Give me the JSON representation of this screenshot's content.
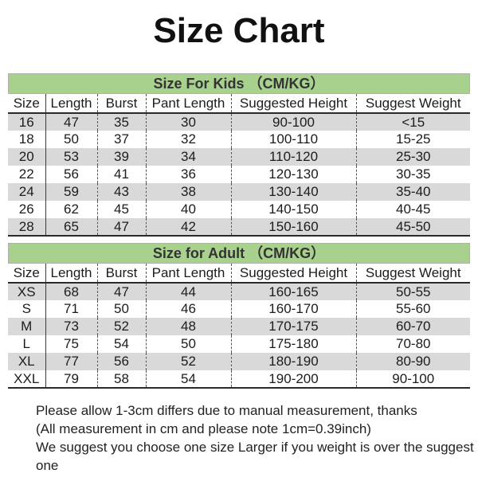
{
  "page": {
    "title": "Size Chart"
  },
  "tables": [
    {
      "title": "Size For Kids （CM/KG）",
      "columns": [
        "Size",
        "Length",
        "Burst",
        "Pant Length",
        "Suggested Height",
        "Suggest Weight"
      ],
      "rows": [
        [
          "16",
          "47",
          "35",
          "30",
          "90-100",
          "<15"
        ],
        [
          "18",
          "50",
          "37",
          "32",
          "100-110",
          "15-25"
        ],
        [
          "20",
          "53",
          "39",
          "34",
          "110-120",
          "25-30"
        ],
        [
          "22",
          "56",
          "41",
          "36",
          "120-130",
          "30-35"
        ],
        [
          "24",
          "59",
          "43",
          "38",
          "130-140",
          "35-40"
        ],
        [
          "26",
          "62",
          "45",
          "40",
          "140-150",
          "40-45"
        ],
        [
          "28",
          "65",
          "47",
          "42",
          "150-160",
          "45-50"
        ]
      ]
    },
    {
      "title": "Size for Adult （CM/KG）",
      "columns": [
        "Size",
        "Length",
        "Burst",
        "Pant Length",
        "Suggested Height",
        "Suggest Weight"
      ],
      "rows": [
        [
          "XS",
          "68",
          "47",
          "44",
          "160-165",
          "50-55"
        ],
        [
          "S",
          "71",
          "50",
          "46",
          "160-170",
          "55-60"
        ],
        [
          "M",
          "73",
          "52",
          "48",
          "170-175",
          "60-70"
        ],
        [
          "L",
          "75",
          "54",
          "50",
          "175-180",
          "70-80"
        ],
        [
          "XL",
          "77",
          "56",
          "52",
          "180-190",
          "80-90"
        ],
        [
          "XXL",
          "79",
          "58",
          "54",
          "190-200",
          "90-100"
        ]
      ]
    }
  ],
  "notes": [
    "Please allow 1-3cm differs due to manual measurement, thanks",
    "(All measurement in cm and please note 1cm=0.39inch)",
    "We suggest you choose one size Larger if you weight is over the suggest one"
  ],
  "colors": {
    "band_green": "#a9d18e",
    "stripe_gray": "#d9d9d9",
    "text": "#1c1c1c"
  }
}
